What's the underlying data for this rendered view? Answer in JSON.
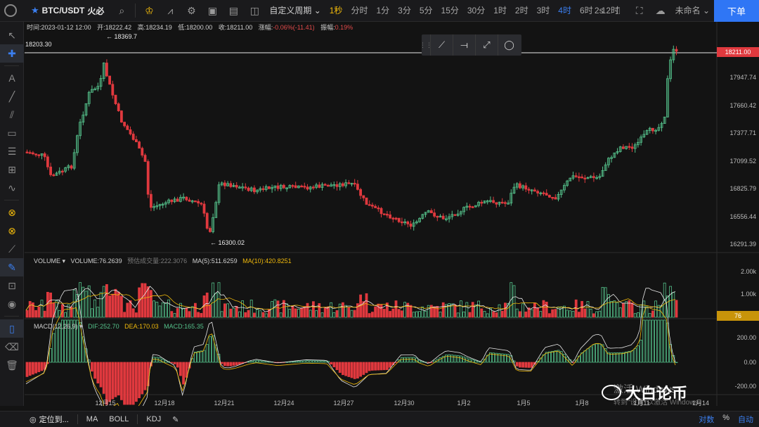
{
  "toolbar": {
    "symbol": "BTC/USDT",
    "exchange": "火必",
    "custom_period": "自定义周期",
    "periods": [
      {
        "label": "1秒",
        "state": "gold"
      },
      {
        "label": "分时",
        "state": ""
      },
      {
        "label": "1分",
        "state": ""
      },
      {
        "label": "3分",
        "state": ""
      },
      {
        "label": "5分",
        "state": ""
      },
      {
        "label": "15分",
        "state": ""
      },
      {
        "label": "30分",
        "state": ""
      },
      {
        "label": "1时",
        "state": ""
      },
      {
        "label": "2时",
        "state": ""
      },
      {
        "label": "3时",
        "state": ""
      },
      {
        "label": "4时",
        "state": "active"
      },
      {
        "label": "6时",
        "state": ""
      },
      {
        "label": "12时",
        "state": ""
      }
    ],
    "refresh": "2s",
    "layout_name": "未命名",
    "order_button": "下单"
  },
  "info_bar": {
    "time_label": "时间:",
    "time": "2023-01-12 12:00",
    "open_label": "开:",
    "open": "18222.42",
    "high_label": "高:",
    "high": "18234.19",
    "low_label": "低:",
    "low": "18200.00",
    "close_label": "收:",
    "close": "18211.00",
    "change_label": "涨幅:",
    "change": "-0.06%(-11.41)",
    "amplitude_label": "振幅:",
    "amplitude": "0.19%"
  },
  "crosshair_price": "18203.30",
  "markers": {
    "high": "18369.7",
    "low": "16300.02"
  },
  "price_axis": {
    "current": "18211.00",
    "labels": [
      "17947.74",
      "17660.42",
      "17377.71",
      "17099.52",
      "16825.79",
      "16556.44",
      "16291.39"
    ]
  },
  "volume": {
    "title": "VOLUME",
    "value_label": "VOLUME:",
    "value": "76.2639",
    "est_label": "预估成交量:",
    "est": "222.3076",
    "ma5_label": "MA(5):",
    "ma5": "511.6259",
    "ma10_label": "MA(10):",
    "ma10": "420.8251",
    "axis": [
      "2.00k",
      "1.00k"
    ],
    "current": "76"
  },
  "macd": {
    "title": "MACD(12,26,9)",
    "dif_label": "DIF:",
    "dif": "252.70",
    "dea_label": "DEA:",
    "dea": "170.03",
    "macd_label": "MACD:",
    "macd": "165.35",
    "axis": [
      "200.00",
      "0.00",
      "-200.00"
    ]
  },
  "dates": [
    "12月15",
    "12月18",
    "12月21",
    "12月24",
    "12月27",
    "12月30",
    "1月2",
    "1月5",
    "1月8",
    "1月11",
    "1月14"
  ],
  "watermark": {
    "line1": "激活 Windows",
    "line2": "转到\"设置\"以激活 Windows。"
  },
  "branding": "大白论币",
  "bottom": {
    "locate": "定位到...",
    "ma": "MA",
    "boll": "BOLL",
    "kdj": "KDJ",
    "log": "对数",
    "percent": "%",
    "auto": "自动"
  },
  "colors": {
    "up": "#54c08a",
    "down": "#e0393e",
    "accent": "#2f76f5",
    "gold": "#f0b90b"
  }
}
